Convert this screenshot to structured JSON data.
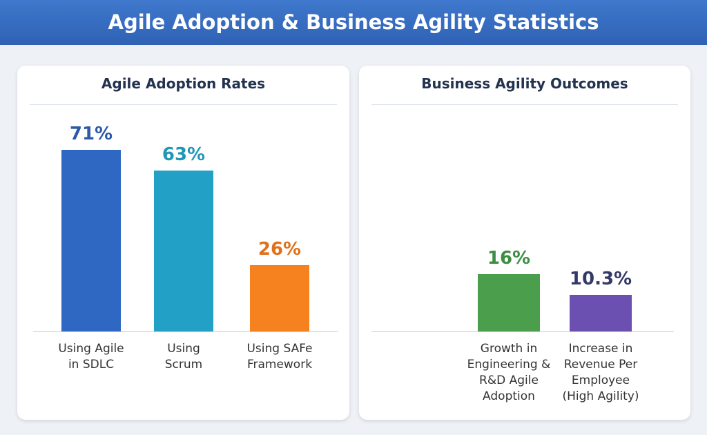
{
  "header": {
    "title": "Agile Adoption & Business Agility Statistics"
  },
  "chart_data": [
    {
      "type": "bar",
      "title": "Agile Adoption Rates",
      "categories": [
        "Using Agile\nin SDLC",
        "Using\nScrum",
        "Using SAFe\nFramework"
      ],
      "values": [
        71,
        63,
        26
      ],
      "value_labels": [
        "71%",
        "63%",
        "26%"
      ],
      "colors": [
        "#2f68c2",
        "#23a0c6",
        "#f5821e"
      ],
      "label_colors": [
        "#2b5aa8",
        "#2197b8",
        "#e0701a"
      ]
    },
    {
      "type": "bar",
      "title": "Business Agility Outcomes",
      "categories": [
        "Growth in\nEngineering &\nR&D Agile\nAdoption",
        "Increase in\nRevenue Per\nEmployee\n(High Agility)"
      ],
      "values": [
        16,
        10.3
      ],
      "value_labels": [
        "16%",
        "10.3%"
      ],
      "colors": [
        "#4a9e4c",
        "#6b50b2"
      ],
      "label_colors": [
        "#3d8e42",
        "#343a66"
      ]
    }
  ]
}
